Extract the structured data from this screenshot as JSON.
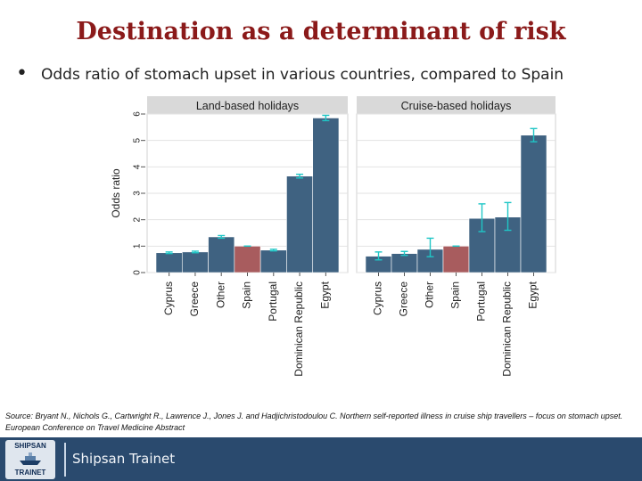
{
  "slide": {
    "title": "Destination as a determinant of risk",
    "bullet": "Odds ratio of stomach upset in various countries, compared to Spain",
    "source": "Source: Bryant N., Nichols G., Cartwright R., Lawrence J., Jones J. and Hadjichristodoulou C. Northern self-reported illness in cruise ship travellers – focus on stomach upset. European Conference on Travel Medicine Abstract",
    "footer": {
      "brand": "Shipsan Trainet",
      "logo_top": "SHIPSAN",
      "logo_bottom": "TRAINET"
    }
  },
  "colors": {
    "title": "#8b1a1a",
    "bar": "#3f6281",
    "reference_bar": "#a85c5e",
    "error_bar": "#1fc6c6",
    "panel_header": "#d9d9d9",
    "footer": "#2a4a6e"
  },
  "chart_data": {
    "type": "bar",
    "ylabel": "Odds ratio",
    "ylim": [
      0,
      6
    ],
    "yticks": [
      0,
      1,
      2,
      3,
      4,
      5,
      6
    ],
    "grid": true,
    "reference_category": "Spain",
    "panels": [
      {
        "name": "Land-based holidays",
        "categories": [
          "Cyprus",
          "Greece",
          "Other",
          "Spain",
          "Portugal",
          "Dominican Republic",
          "Egypt"
        ],
        "values": [
          0.75,
          0.78,
          1.35,
          1.0,
          0.85,
          3.65,
          5.85
        ],
        "error_low": [
          0.72,
          0.75,
          1.3,
          1.0,
          0.82,
          3.58,
          5.75
        ],
        "error_high": [
          0.78,
          0.81,
          1.4,
          1.0,
          0.88,
          3.72,
          5.95
        ]
      },
      {
        "name": "Cruise-based holidays",
        "categories": [
          "Cyprus",
          "Greece",
          "Other",
          "Spain",
          "Portugal",
          "Dominican Republic",
          "Egypt"
        ],
        "values": [
          0.62,
          0.72,
          0.88,
          1.0,
          2.05,
          2.1,
          5.2
        ],
        "error_low": [
          0.48,
          0.65,
          0.6,
          1.0,
          1.55,
          1.6,
          4.95
        ],
        "error_high": [
          0.78,
          0.8,
          1.3,
          1.0,
          2.6,
          2.65,
          5.45
        ]
      }
    ]
  }
}
